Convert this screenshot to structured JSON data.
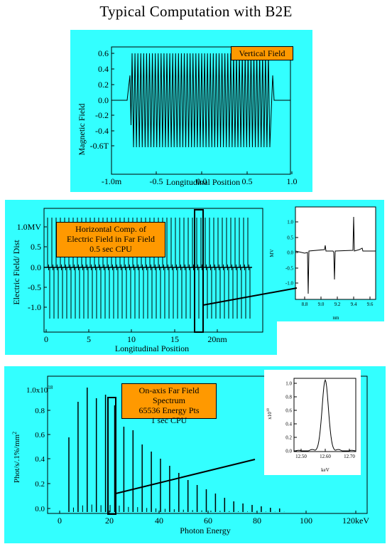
{
  "page_title": "Typical  Computation with B2E",
  "panel1": {
    "note": "Vertical Field",
    "ylabel": "Magnetic Field",
    "xlabel": "Longitudinal Position",
    "yticks": [
      "0.6",
      "0.4",
      "0.2",
      "0.0",
      "-0.2",
      "-0.4",
      "-0.6T"
    ],
    "xticks": [
      "-1.0m",
      "-0.5",
      "0.0",
      "0.5",
      "1.0"
    ]
  },
  "panel2": {
    "note_lines": [
      "Horizontal Comp. of",
      "Electric Field  in Far Field",
      "0.5 sec CPU"
    ],
    "ylabel": "Electric Field/ Dist",
    "xlabel": "Longitudinal Position",
    "yticks": [
      "1.0MV",
      "0.5",
      "0.0",
      "-0.5",
      "-1.0"
    ],
    "xticks": [
      "0",
      "5",
      "10",
      "15",
      "20nm"
    ],
    "inset": {
      "ylabel": "MV",
      "xlabel": "nm",
      "yticks": [
        "1.0",
        "0.5",
        "0.0",
        "-0.5",
        "-1.0"
      ],
      "xticks": [
        "8.8",
        "9.0",
        "9.2",
        "9.4",
        "9.6"
      ]
    }
  },
  "panel3": {
    "note_lines": [
      "On-axis Far Field  Spectrum",
      "65536 Energy Pts",
      "1 sec CPU"
    ],
    "ylabel_main": "Phot/s/.1%/mm",
    "ylabel_sup": "2",
    "xlabel": "Photon Energy",
    "ytick_top_base": "1.0x10",
    "ytick_top_exp": "18",
    "yticks": [
      "0.8",
      "0.6",
      "0.4",
      "0.2",
      "0.0"
    ],
    "xticks": [
      "0",
      "20",
      "40",
      "60",
      "80",
      "100",
      "120keV"
    ],
    "inset": {
      "ylabel_base": "x10",
      "ylabel_exp": "18",
      "xlabel": "keV",
      "yticks": [
        "1.0",
        "0.8",
        "0.6",
        "0.4",
        "0.2",
        "0.0"
      ],
      "xticks": [
        "12.50",
        "12.60",
        "12.70"
      ]
    }
  }
}
